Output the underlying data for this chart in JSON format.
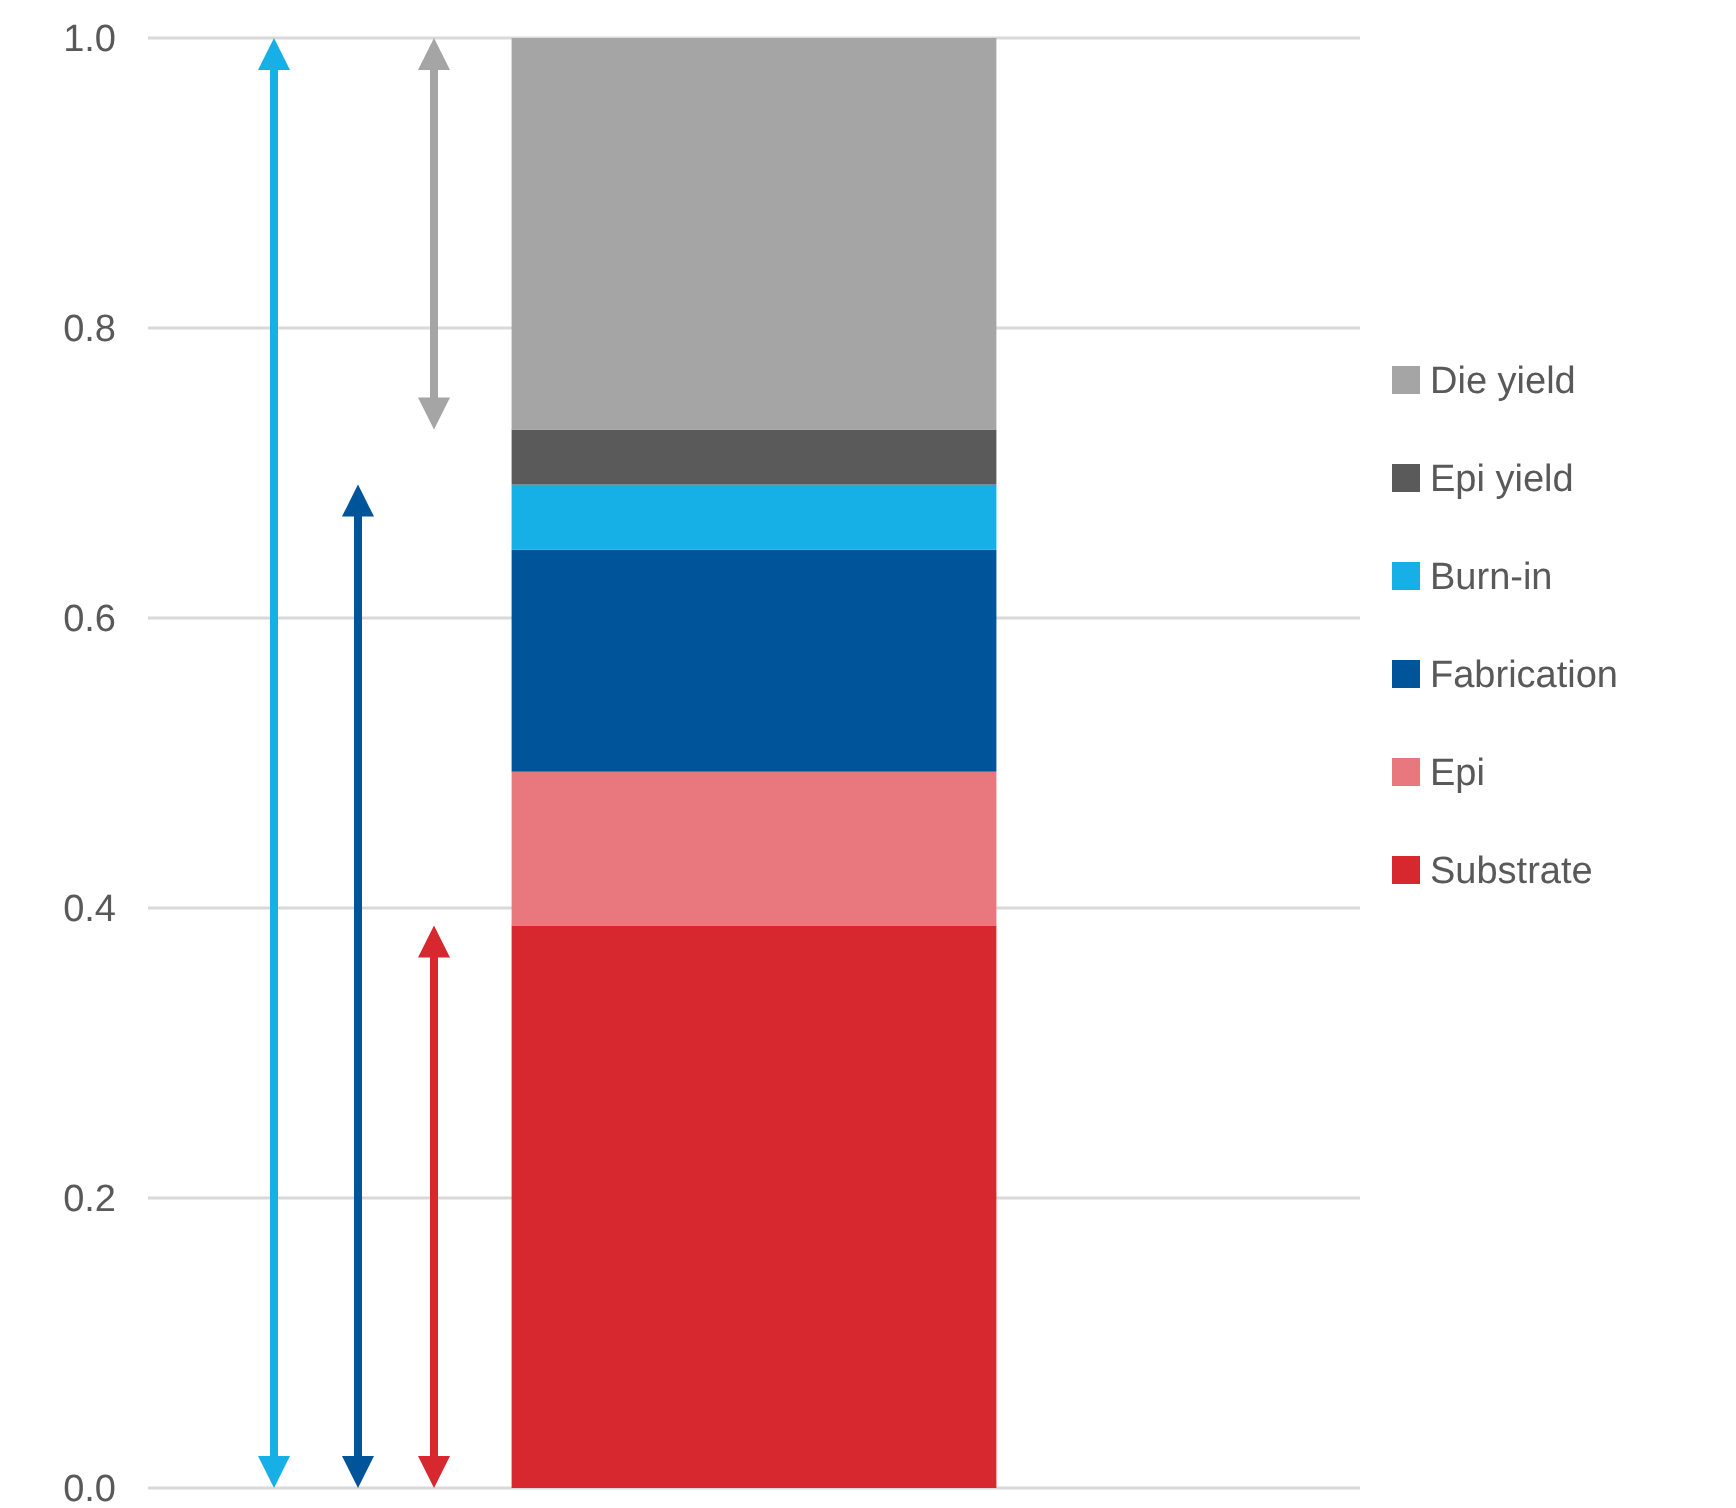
{
  "chart_data": {
    "type": "bar",
    "stacked": true,
    "categories": [
      null
    ],
    "series": [
      {
        "name": "Substrate",
        "color": "#d7282f",
        "values": [
          0.388
        ]
      },
      {
        "name": "Epi",
        "color": "#e8787e",
        "values": [
          0.106
        ]
      },
      {
        "name": "Fabrication",
        "color": "#005499",
        "values": [
          0.153
        ]
      },
      {
        "name": "Burn-in",
        "color": "#16b0e6",
        "values": [
          0.045
        ]
      },
      {
        "name": "Epi yield",
        "color": "#5a5a5a",
        "values": [
          0.038
        ]
      },
      {
        "name": "Die yield",
        "color": "#a5a5a5",
        "values": [
          0.27
        ]
      }
    ],
    "ylim": [
      0,
      1
    ],
    "yticks": [
      {
        "value": 0,
        "label": "0.0"
      },
      0.2,
      0.4,
      0.6,
      0.8,
      {
        "value": 1,
        "label": "1.0"
      }
    ],
    "grid": "y",
    "legend": "right",
    "tick_labels": "y"
  }
}
